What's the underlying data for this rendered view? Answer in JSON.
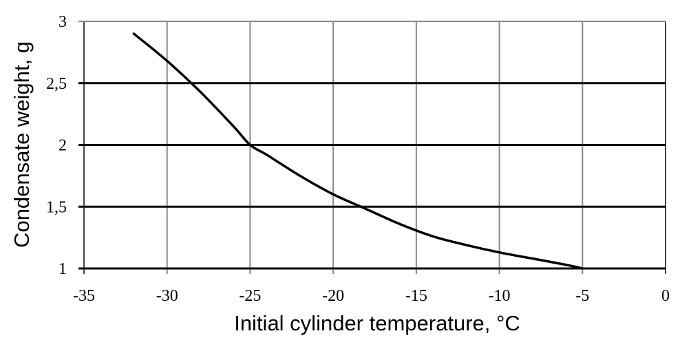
{
  "chart_data": {
    "type": "line",
    "title": "",
    "xlabel": "Initial cylinder temperature, °C",
    "ylabel": "Condensate weight, g",
    "xlim": [
      -35,
      0
    ],
    "ylim": [
      1,
      3
    ],
    "x_ticks": [
      "-35",
      "-30",
      "-25",
      "-20",
      "-15",
      "-10",
      "-5",
      "0"
    ],
    "y_ticks": [
      "1",
      "1,5",
      "2",
      "2,5",
      "3"
    ],
    "x_tick_values": [
      -35,
      -30,
      -25,
      -20,
      -15,
      -10,
      -5,
      0
    ],
    "y_tick_values": [
      1,
      1.5,
      2,
      2.5,
      3
    ],
    "grid": true,
    "series": [
      {
        "x": [
          -32,
          -30,
          -28,
          -26,
          -25,
          -24,
          -22,
          -20,
          -18,
          -16,
          -14,
          -12,
          -10,
          -8,
          -6,
          -5
        ],
        "y": [
          2.9,
          2.68,
          2.43,
          2.15,
          2.0,
          1.92,
          1.75,
          1.6,
          1.48,
          1.36,
          1.26,
          1.19,
          1.13,
          1.08,
          1.03,
          1.0
        ]
      }
    ]
  }
}
